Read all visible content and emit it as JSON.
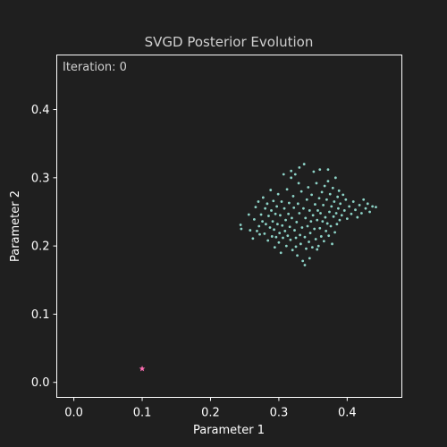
{
  "chart_data": {
    "type": "scatter",
    "title": "SVGD Posterior Evolution",
    "xlabel": "Parameter 1",
    "ylabel": "Parameter 2",
    "annotation": "Iteration: 0",
    "xlim": [
      -0.025,
      0.48
    ],
    "ylim": [
      -0.022,
      0.48
    ],
    "x_ticks": [
      0.0,
      0.1,
      0.2,
      0.3,
      0.4
    ],
    "x_tick_labels": [
      "0.0",
      "0.1",
      "0.2",
      "0.3",
      "0.4"
    ],
    "y_ticks": [
      0.0,
      0.1,
      0.2,
      0.3,
      0.4
    ],
    "y_tick_labels": [
      "0.0",
      "0.1",
      "0.2",
      "0.3",
      "0.4"
    ],
    "grid": false,
    "colors": {
      "background": "#1f1f1f",
      "axes_frame": "#ffffff",
      "particles": "#8dd3c7",
      "target": "#ff6eb4"
    },
    "target_marker": {
      "x": 0.1,
      "y": 0.02,
      "shape": "star"
    },
    "particles": [
      [
        0.244,
        0.231
      ],
      [
        0.245,
        0.225
      ],
      [
        0.256,
        0.246
      ],
      [
        0.258,
        0.223
      ],
      [
        0.262,
        0.211
      ],
      [
        0.264,
        0.239
      ],
      [
        0.266,
        0.257
      ],
      [
        0.268,
        0.222
      ],
      [
        0.27,
        0.265
      ],
      [
        0.271,
        0.229
      ],
      [
        0.272,
        0.217
      ],
      [
        0.274,
        0.246
      ],
      [
        0.276,
        0.236
      ],
      [
        0.277,
        0.271
      ],
      [
        0.279,
        0.218
      ],
      [
        0.28,
        0.255
      ],
      [
        0.281,
        0.232
      ],
      [
        0.283,
        0.262
      ],
      [
        0.284,
        0.208
      ],
      [
        0.285,
        0.244
      ],
      [
        0.287,
        0.227
      ],
      [
        0.288,
        0.282
      ],
      [
        0.289,
        0.252
      ],
      [
        0.29,
        0.214
      ],
      [
        0.291,
        0.236
      ],
      [
        0.292,
        0.266
      ],
      [
        0.293,
        0.224
      ],
      [
        0.294,
        0.198
      ],
      [
        0.295,
        0.247
      ],
      [
        0.296,
        0.213
      ],
      [
        0.297,
        0.258
      ],
      [
        0.298,
        0.232
      ],
      [
        0.299,
        0.276
      ],
      [
        0.3,
        0.205
      ],
      [
        0.301,
        0.219
      ],
      [
        0.302,
        0.245
      ],
      [
        0.303,
        0.19
      ],
      [
        0.304,
        0.265
      ],
      [
        0.305,
        0.23
      ],
      [
        0.306,
        0.212
      ],
      [
        0.307,
        0.305
      ],
      [
        0.308,
        0.255
      ],
      [
        0.309,
        0.222
      ],
      [
        0.31,
        0.238
      ],
      [
        0.311,
        0.2
      ],
      [
        0.312,
        0.283
      ],
      [
        0.313,
        0.215
      ],
      [
        0.314,
        0.247
      ],
      [
        0.315,
        0.263
      ],
      [
        0.316,
        0.228
      ],
      [
        0.317,
        0.209
      ],
      [
        0.318,
        0.3
      ],
      [
        0.319,
        0.241
      ],
      [
        0.32,
        0.194
      ],
      [
        0.321,
        0.273
      ],
      [
        0.322,
        0.256
      ],
      [
        0.323,
        0.223
      ],
      [
        0.324,
        0.305
      ],
      [
        0.325,
        0.212
      ],
      [
        0.326,
        0.235
      ],
      [
        0.327,
        0.186
      ],
      [
        0.328,
        0.262
      ],
      [
        0.329,
        0.292
      ],
      [
        0.33,
        0.248
      ],
      [
        0.331,
        0.216
      ],
      [
        0.332,
        0.203
      ],
      [
        0.333,
        0.28
      ],
      [
        0.334,
        0.227
      ],
      [
        0.335,
        0.178
      ],
      [
        0.336,
        0.255
      ],
      [
        0.337,
        0.32
      ],
      [
        0.338,
        0.213
      ],
      [
        0.339,
        0.241
      ],
      [
        0.34,
        0.196
      ],
      [
        0.341,
        0.268
      ],
      [
        0.342,
        0.229
      ],
      [
        0.343,
        0.286
      ],
      [
        0.344,
        0.206
      ],
      [
        0.345,
        0.252
      ],
      [
        0.346,
        0.219
      ],
      [
        0.347,
        0.236
      ],
      [
        0.348,
        0.275
      ],
      [
        0.349,
        0.198
      ],
      [
        0.35,
        0.245
      ],
      [
        0.351,
        0.309
      ],
      [
        0.352,
        0.225
      ],
      [
        0.353,
        0.261
      ],
      [
        0.354,
        0.21
      ],
      [
        0.355,
        0.292
      ],
      [
        0.356,
        0.238
      ],
      [
        0.357,
        0.252
      ],
      [
        0.358,
        0.2
      ],
      [
        0.359,
        0.27
      ],
      [
        0.36,
        0.226
      ],
      [
        0.361,
        0.248
      ],
      [
        0.362,
        0.214
      ],
      [
        0.363,
        0.279
      ],
      [
        0.364,
        0.236
      ],
      [
        0.365,
        0.26
      ],
      [
        0.366,
        0.207
      ],
      [
        0.367,
        0.288
      ],
      [
        0.368,
        0.242
      ],
      [
        0.369,
        0.222
      ],
      [
        0.37,
        0.268
      ],
      [
        0.371,
        0.233
      ],
      [
        0.372,
        0.295
      ],
      [
        0.373,
        0.215
      ],
      [
        0.374,
        0.25
      ],
      [
        0.375,
        0.276
      ],
      [
        0.376,
        0.229
      ],
      [
        0.377,
        0.258
      ],
      [
        0.378,
        0.203
      ],
      [
        0.379,
        0.285
      ],
      [
        0.38,
        0.243
      ],
      [
        0.381,
        0.265
      ],
      [
        0.382,
        0.22
      ],
      [
        0.383,
        0.3
      ],
      [
        0.384,
        0.248
      ],
      [
        0.385,
        0.232
      ],
      [
        0.386,
        0.272
      ],
      [
        0.387,
        0.255
      ],
      [
        0.388,
        0.281
      ],
      [
        0.389,
        0.238
      ],
      [
        0.39,
        0.262
      ],
      [
        0.392,
        0.245
      ],
      [
        0.394,
        0.275
      ],
      [
        0.396,
        0.252
      ],
      [
        0.398,
        0.268
      ],
      [
        0.4,
        0.24
      ],
      [
        0.403,
        0.258
      ],
      [
        0.406,
        0.247
      ],
      [
        0.409,
        0.265
      ],
      [
        0.412,
        0.253
      ],
      [
        0.415,
        0.242
      ],
      [
        0.418,
        0.26
      ],
      [
        0.421,
        0.248
      ],
      [
        0.424,
        0.268
      ],
      [
        0.427,
        0.255
      ],
      [
        0.43,
        0.262
      ],
      [
        0.433,
        0.25
      ],
      [
        0.437,
        0.258
      ],
      [
        0.442,
        0.257
      ],
      [
        0.36,
        0.312
      ],
      [
        0.372,
        0.312
      ],
      [
        0.33,
        0.315
      ],
      [
        0.318,
        0.31
      ],
      [
        0.356,
        0.195
      ],
      [
        0.345,
        0.182
      ],
      [
        0.338,
        0.172
      ],
      [
        0.325,
        0.199
      ]
    ]
  }
}
